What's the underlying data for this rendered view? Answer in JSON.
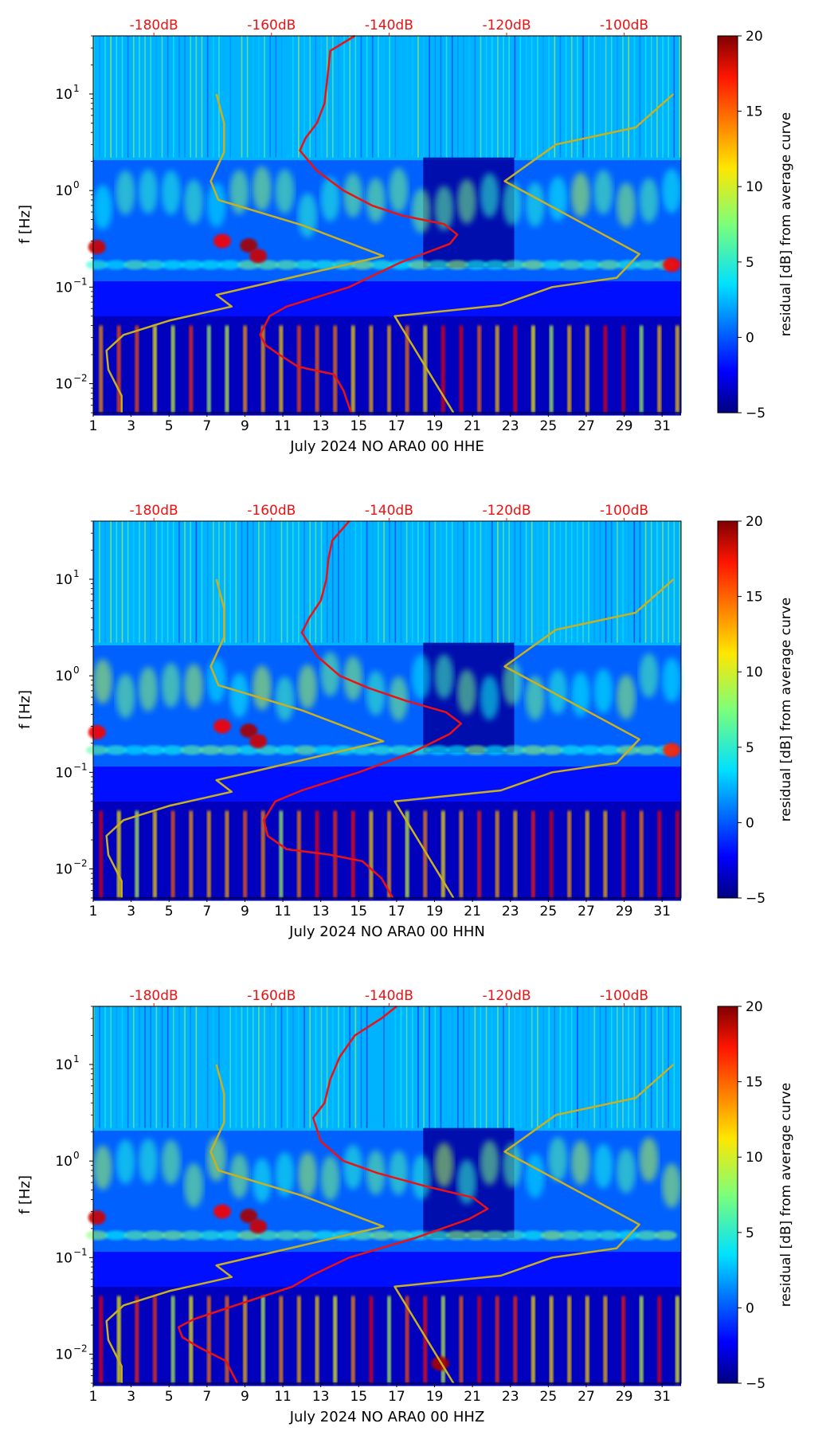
{
  "colorbar": {
    "label": "residual [dB] from average curve",
    "min": -5,
    "max": 20,
    "ticks": [
      -5,
      0,
      5,
      10,
      15,
      20
    ],
    "tick_labels": [
      "−5",
      "0",
      "5",
      "10",
      "15",
      "20"
    ]
  },
  "colors": {
    "noise_model": "#c8b020",
    "median_psd": "#ee1111",
    "top_axis_text": "#ee1111",
    "axis": "#000000"
  },
  "chart_data": [
    {
      "type": "heatmap",
      "channel": "HHE",
      "xlabel": "July 2024 NO ARA0 00 HHE",
      "ylabel": "f [Hz]",
      "xlim": [
        1,
        32
      ],
      "ylim_hz": [
        0.005,
        40
      ],
      "x_ticks": [
        1,
        3,
        5,
        7,
        9,
        11,
        13,
        15,
        17,
        19,
        21,
        23,
        25,
        27,
        29,
        31
      ],
      "x_tick_labels": [
        "1",
        "3",
        "5",
        "7",
        "9",
        "11",
        "13",
        "15",
        "17",
        "19",
        "21",
        "23",
        "25",
        "27",
        "29",
        "31"
      ],
      "y_ticks_hz": [
        0.01,
        0.1,
        1,
        10
      ],
      "y_tick_labels": [
        "10",
        "10",
        "10",
        "10"
      ],
      "y_tick_exponents": [
        "−2",
        "−1",
        "0",
        "1"
      ],
      "top_axis": {
        "labels": [
          "-180dB",
          "-160dB",
          "-140dB",
          "-120dB",
          "-100dB"
        ],
        "db_values": [
          -180,
          -160,
          -140,
          -120,
          -100
        ],
        "day_positions": [
          4.2,
          10.4,
          16.6,
          22.8,
          29.0
        ]
      },
      "noise_model_curves": [
        {
          "name": "low noise model",
          "points": [
            [
              2.5,
              0.005
            ],
            [
              2.5,
              0.0075
            ],
            [
              1.8,
              0.014
            ],
            [
              1.7,
              0.022
            ],
            [
              2.6,
              0.032
            ],
            [
              5.0,
              0.045
            ],
            [
              8.3,
              0.063
            ],
            [
              7.5,
              0.083
            ],
            [
              16.3,
              0.21
            ],
            [
              12.0,
              0.44
            ],
            [
              7.6,
              0.8
            ],
            [
              7.2,
              1.25
            ],
            [
              7.9,
              2.5
            ],
            [
              7.9,
              5.0
            ],
            [
              7.5,
              10
            ]
          ]
        },
        {
          "name": "high noise model",
          "points": [
            [
              20.0,
              0.005
            ],
            [
              16.9,
              0.05
            ],
            [
              22.5,
              0.065
            ],
            [
              25.2,
              0.1
            ],
            [
              28.6,
              0.125
            ],
            [
              29.8,
              0.22
            ],
            [
              22.7,
              1.25
            ],
            [
              25.4,
              3.0
            ],
            [
              29.6,
              4.5
            ],
            [
              31.6,
              10
            ]
          ]
        }
      ],
      "median_psd_curve": [
        [
          14.6,
          0.005
        ],
        [
          14.2,
          0.0085
        ],
        [
          13.7,
          0.0125
        ],
        [
          11.8,
          0.015
        ],
        [
          10.8,
          0.02
        ],
        [
          10.1,
          0.025
        ],
        [
          9.8,
          0.032
        ],
        [
          10.3,
          0.05
        ],
        [
          11.2,
          0.063
        ],
        [
          14.5,
          0.1
        ],
        [
          17.2,
          0.18
        ],
        [
          19.8,
          0.28
        ],
        [
          20.2,
          0.35
        ],
        [
          19.5,
          0.45
        ],
        [
          17.3,
          0.55
        ],
        [
          15.7,
          0.7
        ],
        [
          14.2,
          1.0
        ],
        [
          12.8,
          1.6
        ],
        [
          11.9,
          2.6
        ],
        [
          12.2,
          3.5
        ],
        [
          12.8,
          5.0
        ],
        [
          13.2,
          8.0
        ],
        [
          13.3,
          12.0
        ],
        [
          13.4,
          18.0
        ],
        [
          13.5,
          28.0
        ],
        [
          14.8,
          40
        ]
      ],
      "hot_spots": [
        {
          "day": 1.2,
          "hz": 0.26,
          "level": 18
        },
        {
          "day": 7.8,
          "hz": 0.3,
          "level": 17
        },
        {
          "day": 9.2,
          "hz": 0.27,
          "level": 19
        },
        {
          "day": 9.7,
          "hz": 0.21,
          "level": 18
        },
        {
          "day": 31.5,
          "hz": 0.17,
          "level": 17
        }
      ]
    },
    {
      "type": "heatmap",
      "channel": "HHN",
      "xlabel": "July 2024 NO ARA0 00 HHN",
      "ylabel": "f [Hz]",
      "xlim": [
        1,
        32
      ],
      "ylim_hz": [
        0.005,
        40
      ],
      "x_ticks": [
        1,
        3,
        5,
        7,
        9,
        11,
        13,
        15,
        17,
        19,
        21,
        23,
        25,
        27,
        29,
        31
      ],
      "x_tick_labels": [
        "1",
        "3",
        "5",
        "7",
        "9",
        "11",
        "13",
        "15",
        "17",
        "19",
        "21",
        "23",
        "25",
        "27",
        "29",
        "31"
      ],
      "y_ticks_hz": [
        0.01,
        0.1,
        1,
        10
      ],
      "y_tick_labels": [
        "10",
        "10",
        "10",
        "10"
      ],
      "y_tick_exponents": [
        "−2",
        "−1",
        "0",
        "1"
      ],
      "top_axis": {
        "labels": [
          "-180dB",
          "-160dB",
          "-140dB",
          "-120dB",
          "-100dB"
        ],
        "db_values": [
          -180,
          -160,
          -140,
          -120,
          -100
        ],
        "day_positions": [
          4.2,
          10.4,
          16.6,
          22.8,
          29.0
        ]
      },
      "noise_model_curves": [
        {
          "name": "low noise model",
          "points": [
            [
              2.5,
              0.005
            ],
            [
              2.5,
              0.0075
            ],
            [
              1.8,
              0.014
            ],
            [
              1.7,
              0.022
            ],
            [
              2.6,
              0.032
            ],
            [
              5.0,
              0.045
            ],
            [
              8.3,
              0.063
            ],
            [
              7.5,
              0.083
            ],
            [
              16.3,
              0.21
            ],
            [
              12.0,
              0.44
            ],
            [
              7.6,
              0.8
            ],
            [
              7.2,
              1.25
            ],
            [
              7.9,
              2.5
            ],
            [
              7.9,
              5.0
            ],
            [
              7.5,
              10
            ]
          ]
        },
        {
          "name": "high noise model",
          "points": [
            [
              20.0,
              0.005
            ],
            [
              16.9,
              0.05
            ],
            [
              22.5,
              0.065
            ],
            [
              25.2,
              0.1
            ],
            [
              28.6,
              0.125
            ],
            [
              29.8,
              0.22
            ],
            [
              22.7,
              1.25
            ],
            [
              25.4,
              3.0
            ],
            [
              29.6,
              4.5
            ],
            [
              31.6,
              10
            ]
          ]
        }
      ],
      "median_psd_curve": [
        [
          16.8,
          0.005
        ],
        [
          16.2,
          0.008
        ],
        [
          15.2,
          0.012
        ],
        [
          13.5,
          0.014
        ],
        [
          11.2,
          0.016
        ],
        [
          10.2,
          0.022
        ],
        [
          10.0,
          0.032
        ],
        [
          10.6,
          0.05
        ],
        [
          12.0,
          0.065
        ],
        [
          15.0,
          0.1
        ],
        [
          17.8,
          0.16
        ],
        [
          19.8,
          0.25
        ],
        [
          20.4,
          0.32
        ],
        [
          19.6,
          0.42
        ],
        [
          17.5,
          0.55
        ],
        [
          15.5,
          0.75
        ],
        [
          14.0,
          1.0
        ],
        [
          12.8,
          1.6
        ],
        [
          12.0,
          2.8
        ],
        [
          12.4,
          4.0
        ],
        [
          13.0,
          6.0
        ],
        [
          13.3,
          10.0
        ],
        [
          13.4,
          16.0
        ],
        [
          13.6,
          25.0
        ],
        [
          14.5,
          40
        ]
      ],
      "hot_spots": [
        {
          "day": 1.2,
          "hz": 0.26,
          "level": 17
        },
        {
          "day": 7.8,
          "hz": 0.3,
          "level": 17
        },
        {
          "day": 9.2,
          "hz": 0.27,
          "level": 19
        },
        {
          "day": 9.7,
          "hz": 0.21,
          "level": 18
        },
        {
          "day": 31.5,
          "hz": 0.17,
          "level": 16
        }
      ]
    },
    {
      "type": "heatmap",
      "channel": "HHZ",
      "xlabel": "July 2024 NO ARA0 00 HHZ",
      "ylabel": "f [Hz]",
      "xlim": [
        1,
        32
      ],
      "ylim_hz": [
        0.005,
        40
      ],
      "x_ticks": [
        1,
        3,
        5,
        7,
        9,
        11,
        13,
        15,
        17,
        19,
        21,
        23,
        25,
        27,
        29,
        31
      ],
      "x_tick_labels": [
        "1",
        "3",
        "5",
        "7",
        "9",
        "11",
        "13",
        "15",
        "17",
        "19",
        "21",
        "23",
        "25",
        "27",
        "29",
        "31"
      ],
      "y_ticks_hz": [
        0.01,
        0.1,
        1,
        10
      ],
      "y_tick_labels": [
        "10",
        "10",
        "10",
        "10"
      ],
      "y_tick_exponents": [
        "−2",
        "−1",
        "0",
        "1"
      ],
      "top_axis": {
        "labels": [
          "-180dB",
          "-160dB",
          "-140dB",
          "-120dB",
          "-100dB"
        ],
        "db_values": [
          -180,
          -160,
          -140,
          -120,
          -100
        ],
        "day_positions": [
          4.2,
          10.4,
          16.6,
          22.8,
          29.0
        ]
      },
      "noise_model_curves": [
        {
          "name": "low noise model",
          "points": [
            [
              2.5,
              0.005
            ],
            [
              2.5,
              0.0075
            ],
            [
              1.8,
              0.014
            ],
            [
              1.7,
              0.022
            ],
            [
              2.6,
              0.032
            ],
            [
              5.0,
              0.045
            ],
            [
              8.3,
              0.063
            ],
            [
              7.5,
              0.083
            ],
            [
              16.3,
              0.21
            ],
            [
              12.0,
              0.44
            ],
            [
              7.6,
              0.8
            ],
            [
              7.2,
              1.25
            ],
            [
              7.9,
              2.5
            ],
            [
              7.9,
              5.0
            ],
            [
              7.5,
              10
            ]
          ]
        },
        {
          "name": "high noise model",
          "points": [
            [
              20.0,
              0.005
            ],
            [
              16.9,
              0.05
            ],
            [
              22.5,
              0.065
            ],
            [
              25.2,
              0.1
            ],
            [
              28.6,
              0.125
            ],
            [
              29.8,
              0.22
            ],
            [
              22.7,
              1.25
            ],
            [
              25.4,
              3.0
            ],
            [
              29.6,
              4.5
            ],
            [
              31.6,
              10
            ]
          ]
        }
      ],
      "median_psd_curve": [
        [
          8.6,
          0.005
        ],
        [
          8.0,
          0.0085
        ],
        [
          6.5,
          0.012
        ],
        [
          5.7,
          0.015
        ],
        [
          5.5,
          0.019
        ],
        [
          6.3,
          0.023
        ],
        [
          8.5,
          0.032
        ],
        [
          11.5,
          0.05
        ],
        [
          12.5,
          0.065
        ],
        [
          14.5,
          0.1
        ],
        [
          18.0,
          0.16
        ],
        [
          20.8,
          0.25
        ],
        [
          21.8,
          0.32
        ],
        [
          21.0,
          0.42
        ],
        [
          18.5,
          0.55
        ],
        [
          16.0,
          0.75
        ],
        [
          14.2,
          1.0
        ],
        [
          13.0,
          1.6
        ],
        [
          12.6,
          2.8
        ],
        [
          13.2,
          4.0
        ],
        [
          13.5,
          7.0
        ],
        [
          14.0,
          12.0
        ],
        [
          14.8,
          20.0
        ],
        [
          16.2,
          30.0
        ],
        [
          17.0,
          40
        ]
      ],
      "hot_spots": [
        {
          "day": 1.2,
          "hz": 0.26,
          "level": 18
        },
        {
          "day": 7.8,
          "hz": 0.3,
          "level": 17
        },
        {
          "day": 9.2,
          "hz": 0.27,
          "level": 19
        },
        {
          "day": 9.7,
          "hz": 0.21,
          "level": 18
        },
        {
          "day": 19.3,
          "hz": 0.008,
          "level": 19
        }
      ]
    }
  ]
}
